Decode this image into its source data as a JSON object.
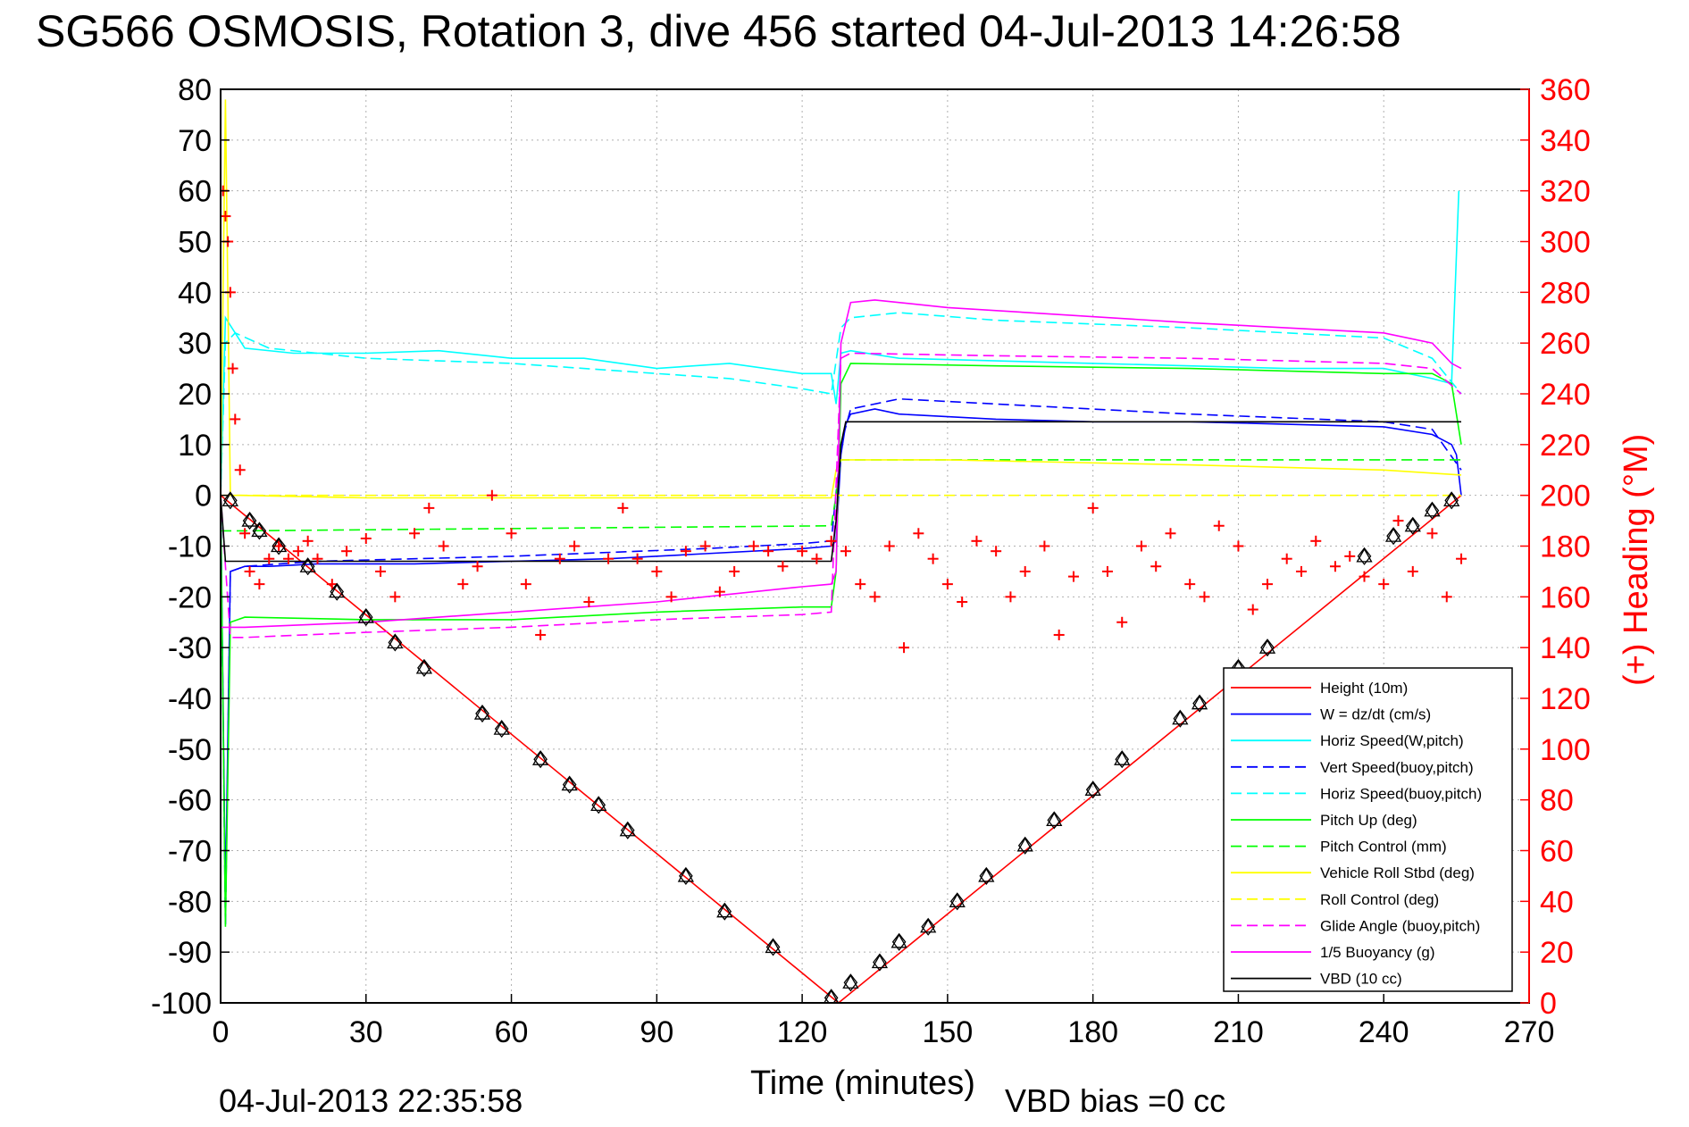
{
  "chart_data": {
    "type": "line",
    "title": "SG566 OSMOSIS, Rotation 3, dive 456 started 04-Jul-2013 14:26:58",
    "xlabel": "Time (minutes)",
    "ylabel_right": "(+) Heading (°M)",
    "footer_left": "04-Jul-2013 22:35:58",
    "footer_right": "VBD bias =0 cc",
    "xlim": [
      0,
      270
    ],
    "ylim": [
      -100,
      80
    ],
    "ylim_right": [
      0,
      360
    ],
    "x_ticks": [
      0,
      30,
      60,
      90,
      120,
      150,
      180,
      210,
      240,
      270
    ],
    "y_ticks": [
      80,
      70,
      60,
      50,
      40,
      30,
      20,
      10,
      0,
      -10,
      -20,
      -30,
      -40,
      -50,
      -60,
      -70,
      -80,
      -90,
      -100
    ],
    "y_ticks_right": [
      360,
      340,
      320,
      300,
      280,
      260,
      240,
      220,
      200,
      180,
      160,
      140,
      120,
      100,
      80,
      60,
      40,
      20,
      0
    ],
    "grid": true,
    "legend_position": "bottom-right",
    "colors": {
      "axis": "#000000",
      "right_axis": "#ff0000",
      "grid": "#b0b0b0"
    },
    "series": [
      {
        "name": "Height (10m)",
        "color": "#ff0000",
        "style": "solid",
        "x": [
          0,
          127.5,
          256
        ],
        "y": [
          0,
          -100,
          0
        ]
      },
      {
        "name": "W = dz/dt (cm/s)",
        "color": "#0000ff",
        "style": "solid",
        "x": [
          0,
          1,
          2,
          5,
          10,
          20,
          40,
          60,
          80,
          100,
          120,
          126,
          127,
          128,
          129,
          130,
          135,
          140,
          160,
          180,
          200,
          220,
          240,
          250,
          254,
          255,
          256
        ],
        "y": [
          0,
          -80,
          -15,
          -14,
          -14,
          -13.5,
          -13.5,
          -13,
          -12.5,
          -11.5,
          -10.5,
          -10,
          -9,
          8,
          14,
          16,
          17,
          16,
          15,
          14.5,
          14.5,
          14,
          13.5,
          12,
          10,
          8,
          0
        ]
      },
      {
        "name": "Horiz Speed(W,pitch)",
        "color": "#00ffff",
        "style": "solid",
        "x": [
          0,
          1,
          3,
          5,
          15,
          30,
          45,
          60,
          75,
          90,
          105,
          120,
          126,
          127,
          128,
          130,
          140,
          160,
          180,
          200,
          220,
          240,
          250,
          254,
          255.5
        ],
        "y": [
          0,
          35,
          32,
          29,
          28,
          28,
          28.5,
          27,
          27,
          25,
          26,
          24,
          24,
          18,
          28,
          28.5,
          27,
          26.5,
          26,
          25.5,
          25,
          25,
          23,
          22,
          60
        ]
      },
      {
        "name": "Vert Speed(buoy,pitch)",
        "color": "#0000ff",
        "style": "dashed",
        "x": [
          0,
          1,
          2,
          5,
          20,
          60,
          100,
          120,
          126,
          128,
          130,
          140,
          160,
          200,
          240,
          250,
          256
        ],
        "y": [
          0,
          -85,
          -15,
          -14,
          -13,
          -12,
          -10.5,
          -9.5,
          -9,
          10,
          17,
          19,
          18,
          16,
          14.5,
          13,
          5
        ]
      },
      {
        "name": "Horiz Speed(buoy,pitch)",
        "color": "#00ffff",
        "style": "dashed",
        "x": [
          0,
          1,
          3,
          10,
          30,
          60,
          90,
          105,
          120,
          126,
          128,
          130,
          140,
          160,
          200,
          240,
          250,
          256
        ],
        "y": [
          0,
          30,
          32,
          29,
          27,
          26,
          24,
          23,
          21,
          20,
          33,
          35,
          36,
          34.5,
          33,
          31,
          27,
          20
        ]
      },
      {
        "name": "Pitch Up (deg)",
        "color": "#00ff00",
        "style": "solid",
        "x": [
          0,
          1,
          2,
          5,
          30,
          60,
          90,
          120,
          126,
          127,
          128,
          130,
          160,
          200,
          240,
          250,
          254,
          256
        ],
        "y": [
          0,
          -85,
          -25,
          -24,
          -24.5,
          -24.5,
          -23,
          -22,
          -22,
          -15,
          22,
          26,
          25.5,
          25,
          24,
          24,
          22,
          10
        ]
      },
      {
        "name": "Pitch Control (mm)",
        "color": "#00ff00",
        "style": "dashed",
        "x": [
          0,
          5,
          126,
          127,
          128,
          256
        ],
        "y": [
          -7,
          -7,
          -6,
          0,
          7,
          7
        ]
      },
      {
        "name": "Vehicle Roll Stbd (deg)",
        "color": "#ffff00",
        "style": "solid",
        "x": [
          0,
          1,
          2,
          4,
          30,
          60,
          90,
          120,
          126,
          127,
          128,
          150,
          200,
          240,
          256
        ],
        "y": [
          0,
          78,
          0,
          0,
          -0.5,
          -0.5,
          -0.5,
          -0.5,
          -0.5,
          5,
          7,
          7,
          6,
          5,
          4
        ]
      },
      {
        "name": "Roll Control (deg)",
        "color": "#ffff00",
        "style": "dashed",
        "x": [
          0,
          256
        ],
        "y": [
          0,
          0
        ]
      },
      {
        "name": "Glide Angle (buoy,pitch)",
        "color": "#ff00ff",
        "style": "dashed",
        "x": [
          0,
          2,
          5,
          30,
          60,
          90,
          120,
          126,
          128,
          130,
          160,
          200,
          240,
          250,
          256
        ],
        "y": [
          0,
          -28,
          -28,
          -27,
          -26,
          -24.5,
          -23.5,
          -23,
          27,
          28,
          27.5,
          27,
          26,
          25,
          20
        ]
      },
      {
        "name": "1/5 Buoyancy (g)",
        "color": "#ff00ff",
        "style": "solid",
        "x": [
          0,
          5,
          30,
          60,
          90,
          120,
          126,
          127,
          128,
          130,
          135,
          150,
          200,
          240,
          250,
          254,
          256
        ],
        "y": [
          -26,
          -26,
          -25,
          -23,
          -21,
          -18,
          -17.5,
          -15,
          30,
          38,
          38.5,
          37,
          34,
          32,
          30,
          26,
          25
        ]
      },
      {
        "name": "VBD (10 cc)",
        "color": "#000000",
        "style": "solid",
        "x": [
          0,
          1,
          126,
          127,
          128,
          129,
          256
        ],
        "y": [
          0,
          -13,
          -13,
          -5,
          10,
          14.5,
          14.5
        ]
      }
    ],
    "heading_points_right_axis": {
      "color": "#ff0000",
      "marker": "+",
      "x": [
        0.5,
        1,
        1.5,
        2,
        2.5,
        3,
        4,
        5,
        6,
        8,
        10,
        12,
        14,
        16,
        18,
        20,
        23,
        26,
        30,
        33,
        36,
        40,
        43,
        46,
        50,
        53,
        56,
        60,
        63,
        66,
        70,
        73,
        76,
        80,
        83,
        86,
        90,
        93,
        96,
        100,
        103,
        106,
        110,
        113,
        116,
        120,
        123,
        126,
        129,
        132,
        135,
        138,
        141,
        144,
        147,
        150,
        153,
        156,
        160,
        163,
        166,
        170,
        173,
        176,
        180,
        183,
        186,
        190,
        193,
        196,
        200,
        203,
        206,
        210,
        213,
        216,
        220,
        223,
        226,
        230,
        233,
        236,
        240,
        243,
        246,
        250,
        253,
        256
      ],
      "y": [
        320,
        310,
        300,
        280,
        250,
        230,
        210,
        185,
        170,
        165,
        175,
        180,
        175,
        178,
        182,
        175,
        165,
        178,
        183,
        170,
        160,
        185,
        195,
        180,
        165,
        172,
        200,
        185,
        165,
        145,
        175,
        180,
        158,
        175,
        195,
        175,
        170,
        160,
        178,
        180,
        162,
        170,
        180,
        178,
        172,
        178,
        175,
        182,
        178,
        165,
        160,
        180,
        140,
        185,
        175,
        165,
        158,
        182,
        178,
        160,
        170,
        180,
        145,
        168,
        195,
        170,
        150,
        180,
        172,
        185,
        165,
        160,
        188,
        180,
        155,
        165,
        175,
        170,
        182,
        172,
        176,
        168,
        165,
        190,
        170,
        185,
        160,
        175
      ]
    },
    "depth_markers": {
      "marker": "diamond-triangle",
      "color": "#000000",
      "x": [
        2,
        6,
        8,
        12,
        18,
        24,
        30,
        36,
        42,
        54,
        58,
        66,
        72,
        78,
        84,
        96,
        104,
        114,
        126,
        130,
        136,
        140,
        146,
        152,
        158,
        166,
        172,
        180,
        186,
        198,
        202,
        210,
        216,
        236,
        242,
        246,
        250,
        254
      ],
      "y": [
        -1,
        -5,
        -7,
        -10,
        -14,
        -19,
        -24,
        -29,
        -34,
        -43,
        -46,
        -52,
        -57,
        -61,
        -66,
        -75,
        -82,
        -89,
        -99,
        -96,
        -92,
        -88,
        -85,
        -80,
        -75,
        -69,
        -64,
        -58,
        -52,
        -44,
        -41,
        -34,
        -30,
        -12,
        -8,
        -6,
        -3,
        -1
      ]
    }
  }
}
